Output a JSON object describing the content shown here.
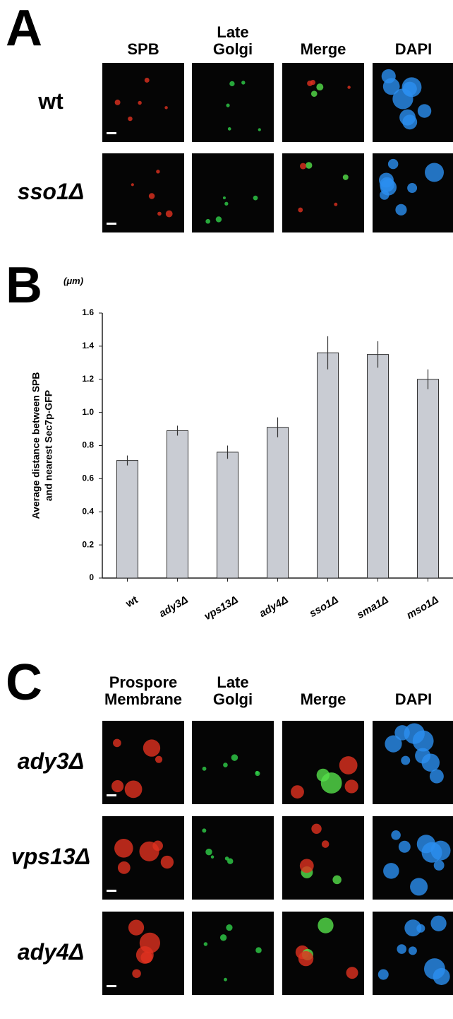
{
  "panel_a": {
    "label": "A",
    "columns": [
      "SPB",
      "Late Golgi",
      "Merge",
      "DAPI"
    ],
    "rows": [
      "wt",
      "sso1Δ"
    ]
  },
  "panel_b": {
    "label": "B",
    "unit": "(μm)"
  },
  "chart_data": {
    "type": "bar",
    "ylabel": [
      "Average distance between SPB",
      "and nearest Sec7p-GFP"
    ],
    "categories": [
      "wt",
      "ady3Δ",
      "vps13Δ",
      "ady4Δ",
      "sso1Δ",
      "sma1Δ",
      "mso1Δ"
    ],
    "values": [
      0.71,
      0.89,
      0.76,
      0.91,
      1.36,
      1.35,
      1.2
    ],
    "errors": [
      0.03,
      0.03,
      0.04,
      0.06,
      0.1,
      0.08,
      0.06
    ],
    "color": "#c9ccd3",
    "ylim": [
      0,
      1.6
    ],
    "yticks": [
      0,
      0.2,
      0.4,
      0.6,
      0.8,
      {
        "value": 1,
        "label": "1.0"
      },
      1.2,
      1.4,
      1.6
    ]
  },
  "panel_c": {
    "label": "C",
    "columns": [
      "Prospore Membrane",
      "Late Golgi",
      "Merge",
      "DAPI"
    ],
    "rows": [
      "ady3Δ",
      "vps13Δ",
      "ady4Δ"
    ]
  }
}
